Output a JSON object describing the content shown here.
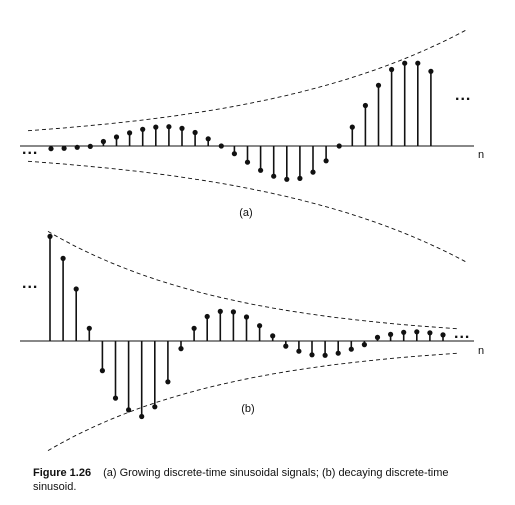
{
  "chart_data": [
    {
      "type": "stem",
      "panel_label": "(a)",
      "xlabel": "n",
      "ellipsis_left": "...",
      "ellipsis_right": "...",
      "envelope": "growing",
      "values": [
        -0.06,
        -0.05,
        -0.03,
        -0.01,
        0.1,
        0.2,
        0.29,
        0.37,
        0.42,
        0.43,
        0.39,
        0.3,
        0.16,
        0.0,
        -0.17,
        -0.36,
        -0.54,
        -0.67,
        -0.74,
        -0.72,
        -0.58,
        -0.33,
        0.0,
        0.42,
        0.9,
        1.35,
        1.7,
        1.84,
        1.84,
        1.66
      ]
    },
    {
      "type": "stem",
      "panel_label": "(b)",
      "xlabel": "n",
      "ellipsis_left": "...",
      "ellipsis_right": "...",
      "envelope": "decaying",
      "values": [
        2.05,
        1.62,
        1.02,
        0.25,
        -0.58,
        -1.12,
        -1.35,
        -1.48,
        -1.29,
        -0.8,
        -0.15,
        0.25,
        0.48,
        0.58,
        0.57,
        0.47,
        0.3,
        0.1,
        -0.1,
        -0.2,
        -0.27,
        -0.28,
        -0.24,
        -0.16,
        -0.07,
        0.07,
        0.13,
        0.17,
        0.18,
        0.16,
        0.12
      ]
    }
  ],
  "caption": {
    "label": "Figure 1.26",
    "text": "(a) Growing discrete-time sinusoidal signals; (b) decaying discrete-time sinusoid."
  }
}
